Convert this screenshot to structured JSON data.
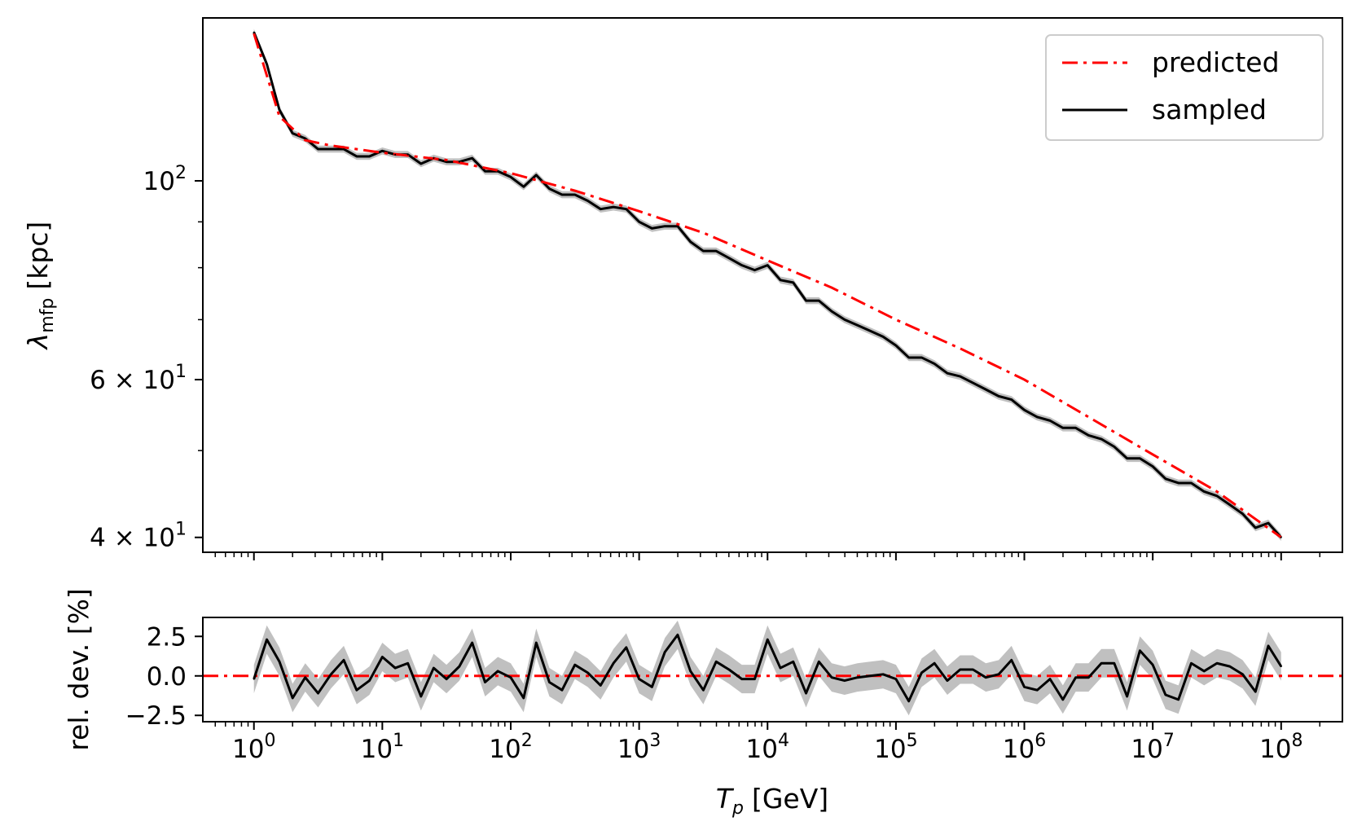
{
  "chart_data": [
    {
      "type": "line",
      "panel": "main",
      "xscale": "log",
      "yscale": "log",
      "xlim": [
        0.4,
        300000000
      ],
      "ylim": [
        38.5,
        152
      ],
      "ylabel": "λ_mfp [kpc]",
      "ylabel_parts": {
        "symbol": "λ",
        "subscript": "mfp",
        "unit": "[kpc]"
      },
      "yticks": [
        {
          "value": 100,
          "base": "10",
          "exp": "2"
        },
        {
          "value": 60,
          "base": "6 × 10",
          "exp": "1"
        },
        {
          "value": 40,
          "base": "4 × 10",
          "exp": "1"
        }
      ],
      "yticks_minor": [
        50,
        70,
        80,
        90
      ],
      "legend": {
        "placement": "upper right",
        "entries": [
          "predicted",
          "sampled"
        ]
      },
      "series": [
        {
          "name": "predicted",
          "style": "dash-dot",
          "color": "#ff0000",
          "x": [
            1,
            1.58,
            2.51,
            3.98,
            10,
            31.6,
            100,
            316,
            1000,
            3162,
            10000,
            31623,
            100000,
            316228,
            1000000,
            3162278,
            10000000,
            31622777,
            100000000
          ],
          "y": [
            146,
            118,
            111,
            109.5,
            107.5,
            105.5,
            102,
            97.5,
            92.5,
            87.5,
            81.5,
            76,
            70,
            65,
            60,
            54.5,
            49.5,
            45,
            40
          ]
        },
        {
          "name": "sampled",
          "style": "solid",
          "color": "#000000",
          "band_color": "#b0b0b0",
          "band_halfwidth_percent": 0.9,
          "x": [
            1,
            1.26,
            1.58,
            2,
            2.51,
            3.16,
            3.98,
            5.01,
            6.31,
            7.94,
            10,
            12.6,
            15.8,
            20,
            25.1,
            31.6,
            39.8,
            50.1,
            63.1,
            79.4,
            100,
            126,
            158,
            200,
            251,
            316,
            398,
            501,
            631,
            794,
            1000,
            1259,
            1585,
            1995,
            2512,
            3162,
            3981,
            5012,
            6310,
            7943,
            10000,
            12589,
            15849,
            19953,
            25119,
            31623,
            39811,
            50119,
            63096,
            79433,
            100000,
            125893,
            158489,
            199526,
            251189,
            316228,
            398107,
            501187,
            630957,
            794328,
            1000000,
            1258925,
            1584893,
            1995262,
            2511886,
            3162278,
            3981072,
            5011872,
            6309573,
            7943282,
            10000000,
            12589254,
            15848932,
            19952623,
            25118864,
            31622777,
            39810717,
            50118723,
            63095734,
            79432823,
            100000000
          ],
          "y": [
            146.5,
            135,
            120,
            113,
            111.5,
            108.5,
            108.5,
            108.5,
            106.5,
            106.5,
            108,
            107,
            107,
            104.5,
            106,
            105,
            105,
            106,
            102.5,
            102.5,
            101,
            98.5,
            101.5,
            98,
            96.5,
            96.5,
            95,
            93,
            93.5,
            93,
            90,
            88.5,
            89,
            89,
            85.5,
            83.5,
            83.5,
            82,
            80.5,
            79.5,
            80.5,
            77.5,
            77,
            73.5,
            73.5,
            71.5,
            70,
            69,
            68,
            67,
            65.5,
            63.5,
            63.5,
            62.5,
            61,
            60.5,
            59.5,
            58.5,
            57.5,
            57,
            55.5,
            54.5,
            54,
            53,
            53,
            52,
            51.5,
            50.5,
            49,
            49,
            48,
            46.5,
            46,
            46,
            45,
            44.5,
            43.5,
            42.5,
            41,
            41.5,
            40
          ]
        }
      ]
    },
    {
      "type": "line",
      "panel": "residual",
      "xscale": "log",
      "xlim": [
        0.4,
        300000000
      ],
      "ylim": [
        -2.9,
        3.7
      ],
      "xlabel": "T_p [GeV]",
      "xlabel_parts": {
        "symbol": "T",
        "subscript": "p",
        "unit": "[GeV]"
      },
      "ylabel": "rel. dev. [%]",
      "xticks": [
        {
          "value": 1,
          "base": "10",
          "exp": "0"
        },
        {
          "value": 10,
          "base": "10",
          "exp": "1"
        },
        {
          "value": 100,
          "base": "10",
          "exp": "2"
        },
        {
          "value": 1000,
          "base": "10",
          "exp": "3"
        },
        {
          "value": 10000,
          "base": "10",
          "exp": "4"
        },
        {
          "value": 100000,
          "base": "10",
          "exp": "5"
        },
        {
          "value": 1000000,
          "base": "10",
          "exp": "6"
        },
        {
          "value": 10000000,
          "base": "10",
          "exp": "7"
        },
        {
          "value": 100000000,
          "base": "10",
          "exp": "8"
        }
      ],
      "yticks": [
        {
          "value": 2.5,
          "label": "2.5"
        },
        {
          "value": 0,
          "label": "0.0"
        },
        {
          "value": -2.5,
          "label": "−2.5"
        }
      ],
      "series": [
        {
          "name": "predicted",
          "style": "dash-dot",
          "color": "#ff0000",
          "x": [
            1,
            100000000
          ],
          "y": [
            0,
            0
          ]
        },
        {
          "name": "sampled",
          "style": "solid",
          "color": "#000000",
          "band_color": "#b0b0b0",
          "band_halfwidth": 0.9,
          "x": [
            1,
            1.26,
            1.58,
            2,
            2.51,
            3.16,
            3.98,
            5.01,
            6.31,
            7.94,
            10,
            12.6,
            15.8,
            20,
            25.1,
            31.6,
            39.8,
            50.1,
            63.1,
            79.4,
            100,
            126,
            158,
            200,
            251,
            316,
            398,
            501,
            631,
            794,
            1000,
            1259,
            1585,
            1995,
            2512,
            3162,
            3981,
            5012,
            6310,
            7943,
            10000,
            12589,
            15849,
            19953,
            25119,
            31623,
            39811,
            50119,
            63096,
            79433,
            100000,
            125893,
            158489,
            199526,
            251189,
            316228,
            398107,
            501187,
            630957,
            794328,
            1000000,
            1258925,
            1584893,
            1995262,
            2511886,
            3162278,
            3981072,
            5011872,
            6309573,
            7943282,
            10000000,
            12589254,
            15848932,
            19952623,
            25118864,
            31622777,
            39810717,
            50118723,
            63095734,
            79432823,
            100000000
          ],
          "y": [
            -0.2,
            2.3,
            0.9,
            -1.4,
            -0.1,
            -1.1,
            0.1,
            1.0,
            -0.9,
            -0.3,
            1.2,
            0.5,
            0.8,
            -1.3,
            0.5,
            -0.2,
            0.6,
            2.1,
            -0.4,
            0.3,
            -0.1,
            -1.4,
            2.1,
            -0.4,
            -0.9,
            0.7,
            0.2,
            -0.6,
            0.8,
            1.8,
            -0.2,
            -0.7,
            1.5,
            2.6,
            0.3,
            -0.9,
            0.9,
            0.4,
            -0.2,
            -0.2,
            2.3,
            0.5,
            0.9,
            -1.1,
            0.9,
            -0.1,
            -0.3,
            -0.1,
            0.0,
            0.1,
            -0.2,
            -1.6,
            0.2,
            0.8,
            -0.3,
            0.4,
            0.4,
            -0.1,
            0.1,
            1.0,
            -0.7,
            -0.9,
            -0.2,
            -1.5,
            -0.1,
            -0.1,
            0.8,
            0.8,
            -1.3,
            1.6,
            0.7,
            -1.2,
            -1.5,
            0.8,
            0.3,
            0.8,
            0.6,
            0.1,
            -1.0,
            1.9,
            0.6
          ]
        }
      ]
    }
  ]
}
